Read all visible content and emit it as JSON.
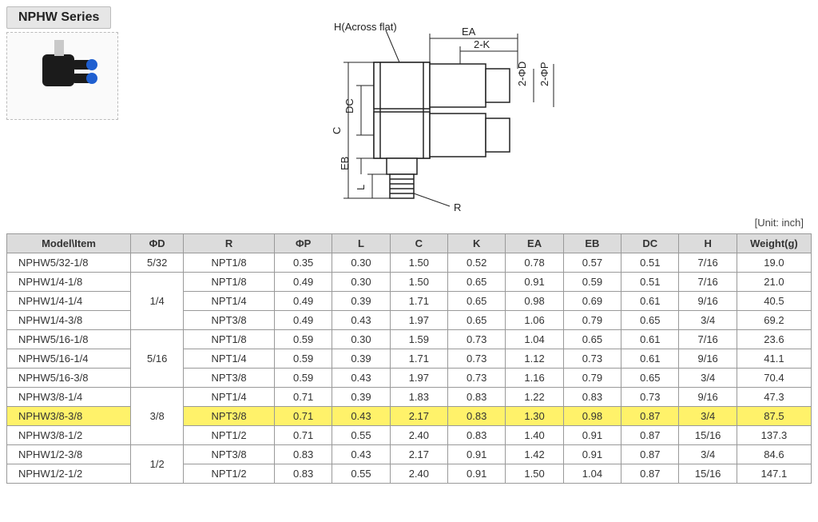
{
  "series_title": "NPHW Series",
  "unit_label": "[Unit: inch]",
  "diagram_labels": {
    "h_across": "H(Across flat)",
    "ea": "EA",
    "two_k": "2-K",
    "two_phid": "2-ΦD",
    "two_phip": "2-ΦP",
    "dc": "DC",
    "c": "C",
    "eb": "EB",
    "l": "L",
    "r": "R"
  },
  "columns": [
    "Model\\Item",
    "ΦD",
    "R",
    "ΦP",
    "L",
    "C",
    "K",
    "EA",
    "EB",
    "DC",
    "H",
    "Weight(g)"
  ],
  "rows": [
    {
      "model": "NPHW5/32-1/8",
      "phiD": "5/32",
      "phiD_span": 1,
      "R": "NPT1/8",
      "phiP": "0.35",
      "L": "0.30",
      "C": "1.50",
      "K": "0.52",
      "EA": "0.78",
      "EB": "0.57",
      "DC": "0.51",
      "H": "7/16",
      "W": "19.0"
    },
    {
      "model": "NPHW1/4-1/8",
      "phiD": "1/4",
      "phiD_span": 3,
      "R": "NPT1/8",
      "phiP": "0.49",
      "L": "0.30",
      "C": "1.50",
      "K": "0.65",
      "EA": "0.91",
      "EB": "0.59",
      "DC": "0.51",
      "H": "7/16",
      "W": "21.0"
    },
    {
      "model": "NPHW1/4-1/4",
      "R": "NPT1/4",
      "phiP": "0.49",
      "L": "0.39",
      "C": "1.71",
      "K": "0.65",
      "EA": "0.98",
      "EB": "0.69",
      "DC": "0.61",
      "H": "9/16",
      "W": "40.5"
    },
    {
      "model": "NPHW1/4-3/8",
      "R": "NPT3/8",
      "phiP": "0.49",
      "L": "0.43",
      "C": "1.97",
      "K": "0.65",
      "EA": "1.06",
      "EB": "0.79",
      "DC": "0.65",
      "H": "3/4",
      "W": "69.2"
    },
    {
      "model": "NPHW5/16-1/8",
      "phiD": "5/16",
      "phiD_span": 3,
      "R": "NPT1/8",
      "phiP": "0.59",
      "L": "0.30",
      "C": "1.59",
      "K": "0.73",
      "EA": "1.04",
      "EB": "0.65",
      "DC": "0.61",
      "H": "7/16",
      "W": "23.6"
    },
    {
      "model": "NPHW5/16-1/4",
      "R": "NPT1/4",
      "phiP": "0.59",
      "L": "0.39",
      "C": "1.71",
      "K": "0.73",
      "EA": "1.12",
      "EB": "0.73",
      "DC": "0.61",
      "H": "9/16",
      "W": "41.1"
    },
    {
      "model": "NPHW5/16-3/8",
      "R": "NPT3/8",
      "phiP": "0.59",
      "L": "0.43",
      "C": "1.97",
      "K": "0.73",
      "EA": "1.16",
      "EB": "0.79",
      "DC": "0.65",
      "H": "3/4",
      "W": "70.4"
    },
    {
      "model": "NPHW3/8-1/4",
      "phiD": "3/8",
      "phiD_span": 3,
      "R": "NPT1/4",
      "phiP": "0.71",
      "L": "0.39",
      "C": "1.83",
      "K": "0.83",
      "EA": "1.22",
      "EB": "0.83",
      "DC": "0.73",
      "H": "9/16",
      "W": "47.3"
    },
    {
      "model": "NPHW3/8-3/8",
      "R": "NPT3/8",
      "phiP": "0.71",
      "L": "0.43",
      "C": "2.17",
      "K": "0.83",
      "EA": "1.30",
      "EB": "0.98",
      "DC": "0.87",
      "H": "3/4",
      "W": "87.5",
      "highlight": true
    },
    {
      "model": "NPHW3/8-1/2",
      "R": "NPT1/2",
      "phiP": "0.71",
      "L": "0.55",
      "C": "2.40",
      "K": "0.83",
      "EA": "1.40",
      "EB": "0.91",
      "DC": "0.87",
      "H": "15/16",
      "W": "137.3"
    },
    {
      "model": "NPHW1/2-3/8",
      "phiD": "1/2",
      "phiD_span": 2,
      "R": "NPT3/8",
      "phiP": "0.83",
      "L": "0.43",
      "C": "2.17",
      "K": "0.91",
      "EA": "1.42",
      "EB": "0.91",
      "DC": "0.87",
      "H": "3/4",
      "W": "84.6"
    },
    {
      "model": "NPHW1/2-1/2",
      "R": "NPT1/2",
      "phiP": "0.83",
      "L": "0.55",
      "C": "2.40",
      "K": "0.91",
      "EA": "1.50",
      "EB": "1.04",
      "DC": "0.87",
      "H": "15/16",
      "W": "147.1"
    }
  ]
}
